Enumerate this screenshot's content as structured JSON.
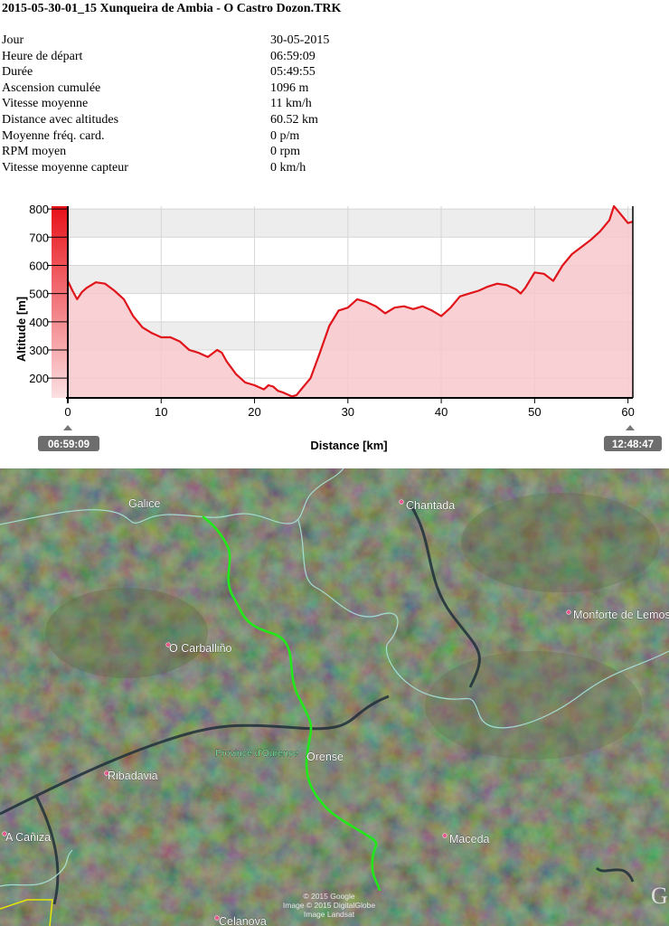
{
  "header": {
    "title": "2015-05-30-01_15 Xunqueira de Ambia - O Castro Dozon.TRK"
  },
  "stats": [
    {
      "label": "Jour",
      "value": "30-05-2015"
    },
    {
      "label": "Heure de départ",
      "value": "06:59:09"
    },
    {
      "label": "Durée",
      "value": "05:49:55"
    },
    {
      "label": "Ascension cumulée",
      "value": "1096 m"
    },
    {
      "label": "Vitesse moyenne",
      "value": "11 km/h"
    },
    {
      "label": "Distance avec altitudes",
      "value": "60.52 km"
    },
    {
      "label": "Moyenne fréq. card.",
      "value": "0 p/m"
    },
    {
      "label": "RPM moyen",
      "value": "0 rpm"
    },
    {
      "label": "Vitesse moyenne capteur",
      "value": "0 km/h"
    }
  ],
  "chart_data": {
    "type": "area",
    "title": "",
    "xlabel": "Distance [km]",
    "ylabel": "Altitude [m]",
    "xlim": [
      0,
      60.52
    ],
    "ylim": [
      130,
      810
    ],
    "xticks": [
      0,
      10,
      20,
      30,
      40,
      50,
      60
    ],
    "yticks": [
      200,
      300,
      400,
      500,
      600,
      700,
      800
    ],
    "start_time": "06:59:09",
    "end_time": "12:48:47",
    "grid": true,
    "line_color": "#e0141a",
    "fill_color": "#f8c8cb",
    "x": [
      0,
      0.5,
      1,
      1.5,
      2,
      3,
      4,
      5,
      6,
      7,
      8,
      9,
      10,
      11,
      12,
      13,
      14,
      15,
      16,
      16.5,
      17,
      18,
      19,
      20,
      21,
      21.5,
      22,
      22.5,
      23,
      24,
      24.5,
      25,
      26,
      27,
      28,
      29,
      30,
      31,
      32,
      33,
      34,
      35,
      36,
      37,
      38,
      39,
      40,
      41,
      42,
      43,
      44,
      45,
      46,
      47,
      48,
      48.5,
      49,
      50,
      51,
      52,
      53,
      54,
      55,
      56,
      57,
      58,
      58.5,
      59,
      60,
      60.52
    ],
    "series": [
      {
        "name": "",
        "values": [
          545,
          510,
          480,
          505,
          520,
          540,
          535,
          510,
          480,
          420,
          380,
          360,
          345,
          345,
          330,
          300,
          290,
          275,
          300,
          290,
          260,
          215,
          185,
          175,
          160,
          175,
          170,
          155,
          150,
          135,
          140,
          160,
          200,
          290,
          385,
          440,
          450,
          480,
          470,
          455,
          430,
          450,
          455,
          445,
          455,
          440,
          420,
          450,
          490,
          500,
          510,
          525,
          535,
          530,
          515,
          500,
          520,
          575,
          570,
          545,
          600,
          640,
          665,
          690,
          720,
          760,
          810,
          790,
          750,
          755
        ]
      }
    ]
  },
  "map": {
    "labels": {
      "galice": "Galice",
      "chantada": "Chantada",
      "monforte": "Monforte de Lemos",
      "carballino": "O Carballiño",
      "province": "Province d'Ourense",
      "orense": "Orense",
      "ribadavia": "Ribadavia",
      "acaniza": "A Cañiza",
      "maceda": "Maceda",
      "celanova": "Celanova"
    },
    "attribution": [
      "© 2015 Google",
      "Image © 2015 DigitalGlobe",
      "Image Landsat"
    ],
    "track_color": "#22e81a"
  }
}
